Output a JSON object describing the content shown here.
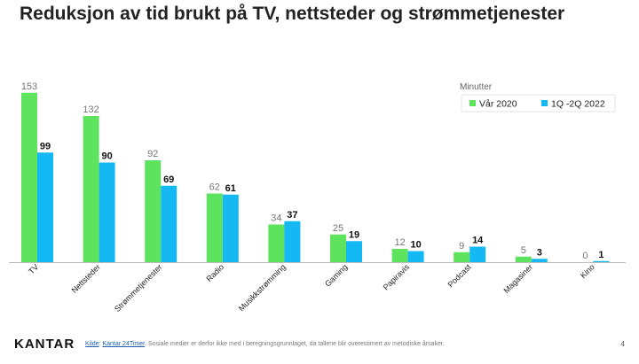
{
  "title": "Reduksjon av tid brukt på TV, nettsteder og strømmetjenester",
  "colors": {
    "series_a": "#5de35d",
    "series_b": "#14b8f2",
    "axis": "#bbbbbb"
  },
  "chart_data": {
    "type": "bar",
    "title": "Reduksjon av tid brukt på TV, nettsteder og strømmetjenester",
    "legend_title": "Minutter",
    "legend_position": "top-right",
    "categories": [
      "TV",
      "Nettsteder",
      "Strømmetjenester",
      "Radio",
      "Musikkstrømming",
      "Gaming",
      "Papiravis",
      "Podcast",
      "Magasiner",
      "Kino"
    ],
    "series": [
      {
        "name": "Vår 2020",
        "values": [
          153,
          132,
          92,
          62,
          34,
          25,
          12,
          9,
          5,
          0
        ]
      },
      {
        "name": "1Q -2Q 2022",
        "values": [
          99,
          90,
          69,
          61,
          37,
          19,
          10,
          14,
          3,
          1
        ]
      }
    ],
    "ylim": [
      0,
      160
    ],
    "grid": false,
    "xlabel": "",
    "ylabel": ""
  },
  "footer": {
    "logo": "KANTAR",
    "source_label": "Kilde",
    "source_sep": ": ",
    "source_link": "Kantar 24Timer",
    "source_note": ". Sosiale medier er derfor ikke med i beregningsgrunnlaget,  da tallene blir overestimert  av metodiske årsaker.",
    "page_number": "4"
  }
}
